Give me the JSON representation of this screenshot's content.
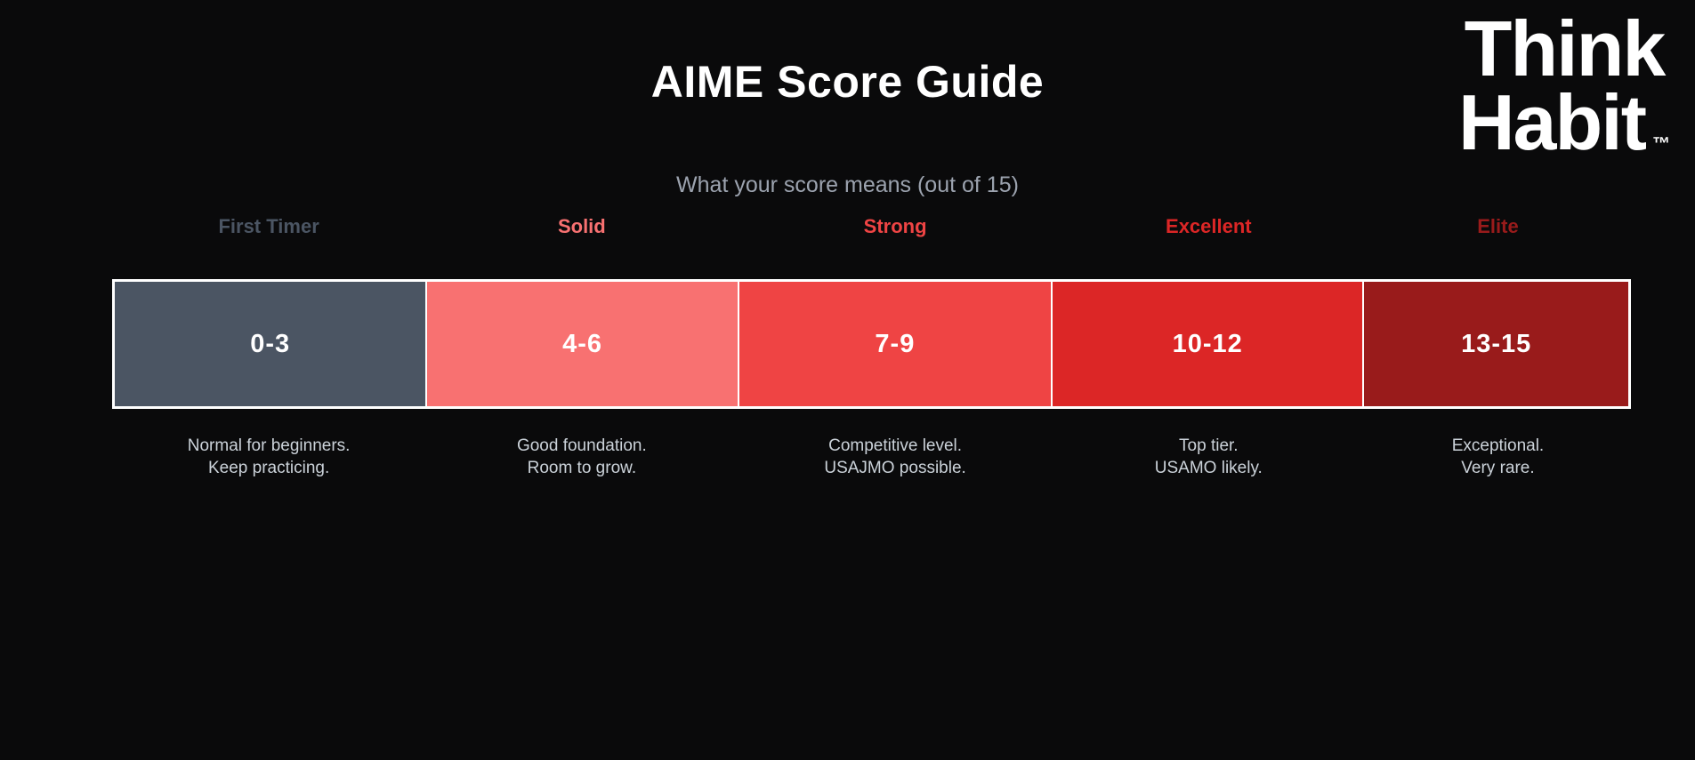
{
  "page": {
    "title": "AIME Score Guide",
    "subtitle": "What your score means (out of 15)",
    "logo": {
      "line1": "Think",
      "line2": "Habit",
      "trademark": "™"
    }
  },
  "colors": {
    "background": "#0a0a0b",
    "title_text": "#ffffff",
    "subtitle_text": "#9ca3af",
    "description_text": "#cbd2d9",
    "bar_border": "#ffffff",
    "range_text": "#ffffff"
  },
  "tiers": [
    {
      "label": "First Timer",
      "range": "0-3",
      "color": "#4b5563",
      "desc1": "Normal for beginners.",
      "desc2": "Keep practicing."
    },
    {
      "label": "Solid",
      "range": "4-6",
      "color": "#f87171",
      "desc1": "Good foundation.",
      "desc2": "Room to grow."
    },
    {
      "label": "Strong",
      "range": "7-9",
      "color": "#ef4444",
      "desc1": "Competitive level.",
      "desc2": "USAJMO possible."
    },
    {
      "label": "Excellent",
      "range": "10-12",
      "color": "#dc2626",
      "desc1": "Top tier.",
      "desc2": "USAMO likely."
    },
    {
      "label": "Elite",
      "range": "13-15",
      "color": "#991b1b",
      "desc1": "Exceptional.",
      "desc2": "Very rare."
    }
  ]
}
